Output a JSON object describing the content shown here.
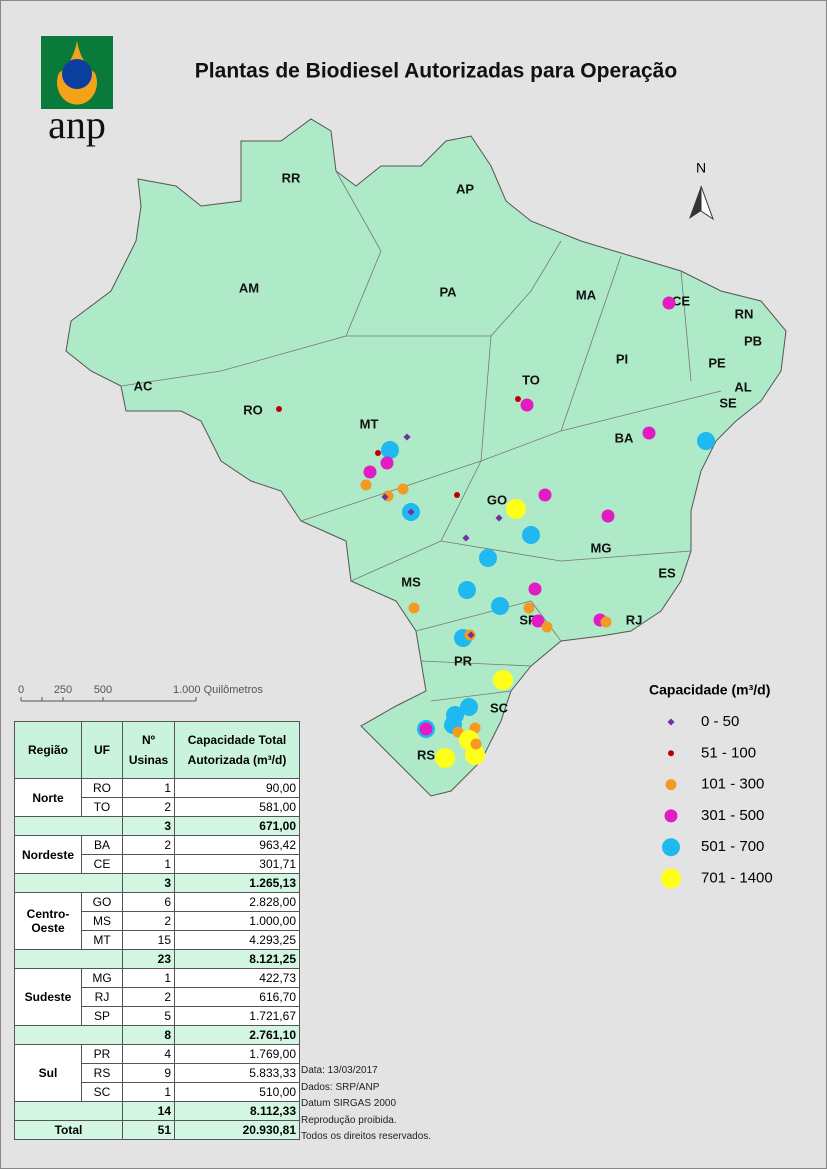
{
  "header": {
    "logo_text": "anp",
    "title": "Plantas de Biodiesel Autorizadas para Operação"
  },
  "map": {
    "north": "N",
    "states": [
      "RR",
      "AP",
      "AM",
      "PA",
      "MA",
      "CE",
      "RN",
      "PB",
      "PI",
      "PE",
      "AL",
      "SE",
      "AC",
      "RO",
      "TO",
      "MT",
      "BA",
      "GO",
      "MG",
      "ES",
      "MS",
      "SP",
      "RJ",
      "PR",
      "SC",
      "RS"
    ],
    "scale": [
      "0",
      "250",
      "500",
      "1.000 Quilômetros"
    ]
  },
  "legend": {
    "title": "Capacidade (m³/d)",
    "items": [
      "0 - 50",
      "51 - 100",
      "101 - 300",
      "301 - 500",
      "501 - 700",
      "701 - 1400"
    ]
  },
  "table": {
    "headers": [
      "Região",
      "UF",
      "Nº Usinas",
      "Capacidade Total Autorizada (m³/d)"
    ],
    "regions": [
      {
        "name": "Norte",
        "rows": [
          [
            "RO",
            "1",
            "90,00"
          ],
          [
            "TO",
            "2",
            "581,00"
          ]
        ],
        "subtotal": [
          "3",
          "671,00"
        ]
      },
      {
        "name": "Nordeste",
        "rows": [
          [
            "BA",
            "2",
            "963,42"
          ],
          [
            "CE",
            "1",
            "301,71"
          ]
        ],
        "subtotal": [
          "3",
          "1.265,13"
        ]
      },
      {
        "name": "Centro-Oeste",
        "rows": [
          [
            "GO",
            "6",
            "2.828,00"
          ],
          [
            "MS",
            "2",
            "1.000,00"
          ],
          [
            "MT",
            "15",
            "4.293,25"
          ]
        ],
        "subtotal": [
          "23",
          "8.121,25"
        ]
      },
      {
        "name": "Sudeste",
        "rows": [
          [
            "MG",
            "1",
            "422,73"
          ],
          [
            "RJ",
            "2",
            "616,70"
          ],
          [
            "SP",
            "5",
            "1.721,67"
          ]
        ],
        "subtotal": [
          "8",
          "2.761,10"
        ]
      },
      {
        "name": "Sul",
        "rows": [
          [
            "PR",
            "4",
            "1.769,00"
          ],
          [
            "RS",
            "9",
            "5.833,33"
          ],
          [
            "SC",
            "1",
            "510,00"
          ]
        ],
        "subtotal": [
          "14",
          "8.112,33"
        ]
      }
    ],
    "total": [
      "Total",
      "51",
      "20.930,81"
    ]
  },
  "notes": [
    "Data: 13/03/2017",
    "Dados: SRP/ANP",
    "Datum SIRGAS 2000",
    "Reprodução proibida.",
    "Todos os direitos reservados."
  ]
}
